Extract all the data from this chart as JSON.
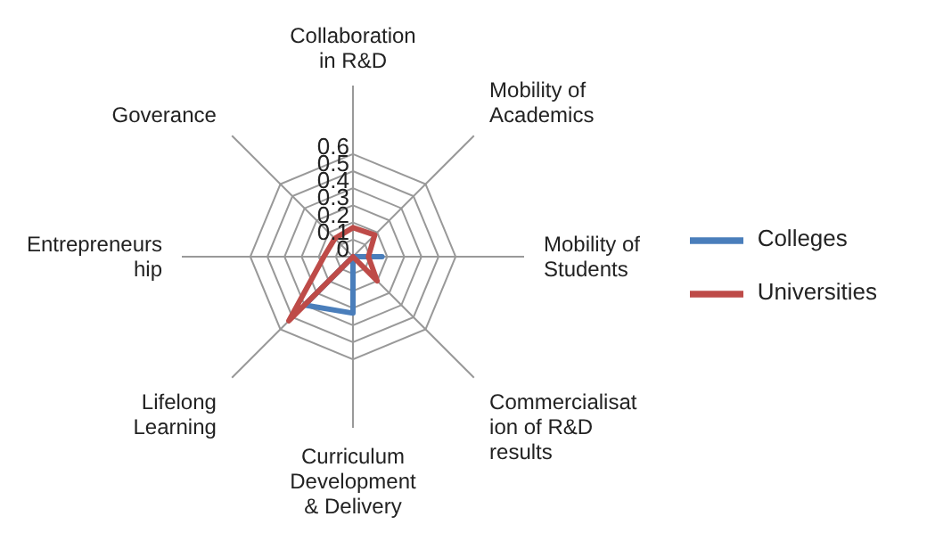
{
  "chart_data": {
    "type": "radar",
    "categories": [
      "Collaboration in  R&D",
      "Mobility of Academics",
      "Mobility of Students",
      "Commercialisation of R&D results",
      "Curriculum Development & Delivery",
      "Lifelong Learning",
      "Entrepreneurship",
      "Goverance"
    ],
    "series": [
      {
        "name": "Colleges",
        "color": "#4a7ebb",
        "values": [
          0,
          0,
          0.17,
          0,
          0.33,
          0.4,
          0,
          0
        ]
      },
      {
        "name": "Universities",
        "color": "#be4b48",
        "values": [
          0.17,
          0.18,
          0.09,
          0.2,
          0,
          0.53,
          0.17,
          0.15
        ]
      }
    ],
    "ylim": [
      0,
      0.6
    ],
    "yticks": [
      0,
      0.1,
      0.2,
      0.3,
      0.4,
      0.5,
      0.6
    ],
    "grid": true,
    "legend": "right",
    "marker": "none"
  }
}
